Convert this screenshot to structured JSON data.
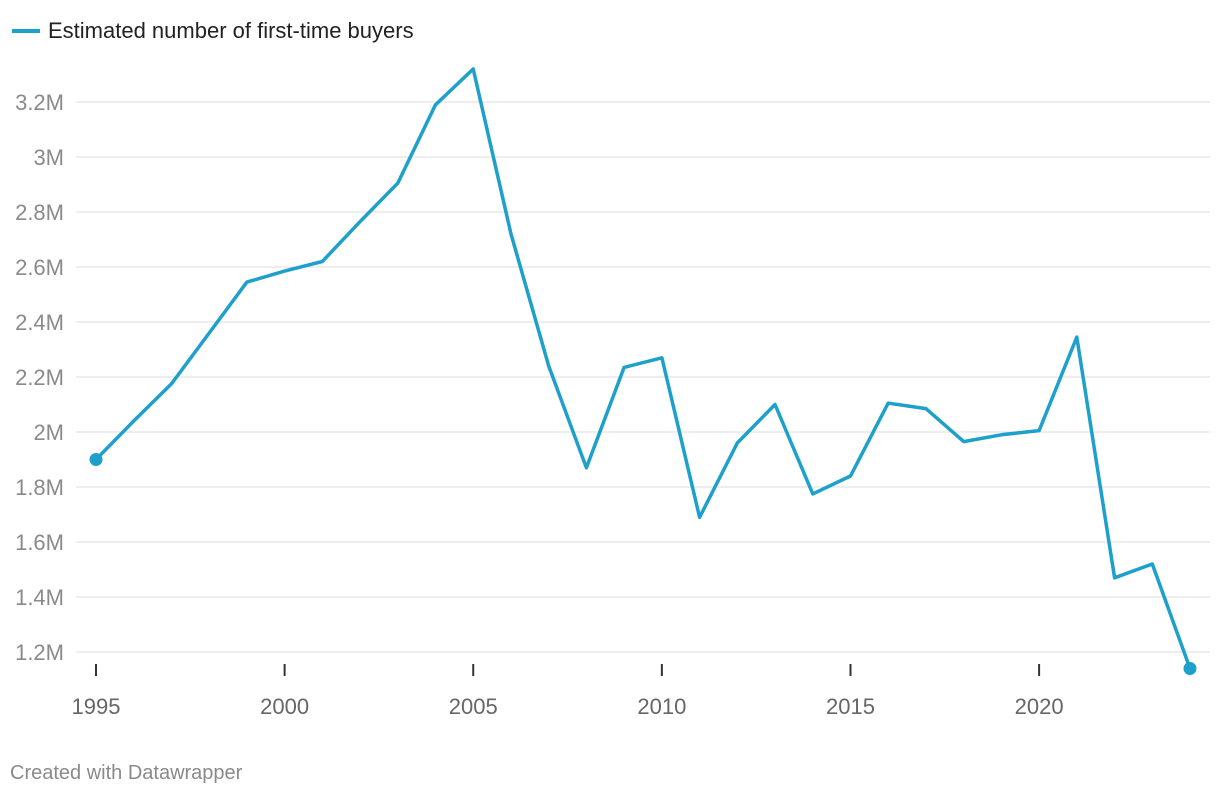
{
  "chart_data": {
    "type": "line",
    "title": "",
    "xlabel": "",
    "ylabel": "",
    "legend": "top-left",
    "grid": true,
    "colors": {
      "series": "#1ea0cc",
      "grid": "#dcdcdc"
    },
    "xlim": [
      1995,
      2024
    ],
    "ylim": [
      1.14,
      3.35
    ],
    "y_ticks": [
      1.2,
      1.4,
      1.6,
      1.8,
      2.0,
      2.2,
      2.4,
      2.6,
      2.8,
      3.0,
      3.2
    ],
    "y_tick_labels": [
      "1.2M",
      "1.4M",
      "1.6M",
      "1.8M",
      "2M",
      "2.2M",
      "2.4M",
      "2.6M",
      "2.8M",
      "3M",
      "3.2M"
    ],
    "x_ticks": [
      1995,
      2000,
      2005,
      2010,
      2015,
      2020
    ],
    "x_tick_labels": [
      "1995",
      "2000",
      "2005",
      "2010",
      "2015",
      "2020"
    ],
    "x": [
      1995,
      1996,
      1997,
      1998,
      1999,
      2000,
      2001,
      2002,
      2003,
      2004,
      2005,
      2006,
      2007,
      2008,
      2009,
      2010,
      2011,
      2012,
      2013,
      2014,
      2015,
      2016,
      2017,
      2018,
      2019,
      2020,
      2021,
      2022,
      2023,
      2024
    ],
    "series": [
      {
        "name": "Estimated number of first-time buyers",
        "values": [
          1.9,
          2.04,
          2.175,
          2.36,
          2.545,
          2.585,
          2.62,
          2.765,
          2.905,
          3.19,
          3.32,
          2.72,
          2.24,
          1.87,
          2.235,
          2.27,
          1.69,
          1.96,
          2.1,
          1.775,
          1.84,
          2.105,
          2.085,
          1.965,
          1.99,
          2.005,
          2.345,
          1.47,
          1.52,
          1.14
        ]
      }
    ],
    "markers": "endpoints"
  },
  "credit": "Created with Datawrapper"
}
